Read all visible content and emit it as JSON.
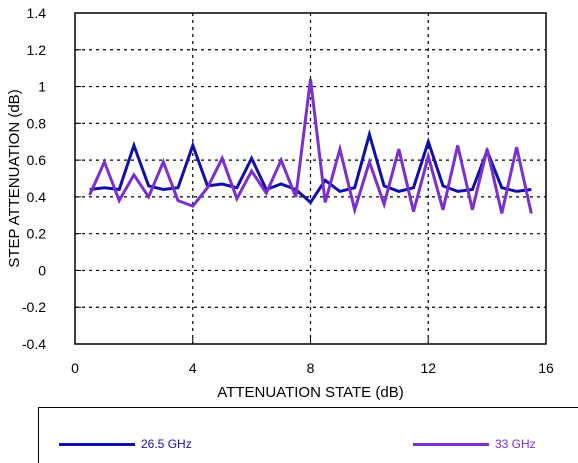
{
  "chart_data": {
    "type": "line",
    "title": "",
    "xlabel": "ATTENUATION STATE (dB)",
    "ylabel": "STEP ATTENUATION (dB)",
    "xlim": [
      0,
      16
    ],
    "ylim": [
      -0.4,
      1.4
    ],
    "xticks": [
      0,
      4,
      8,
      12,
      16
    ],
    "yticks": [
      -0.4,
      -0.2,
      0,
      0.2,
      0.4,
      0.6,
      0.8,
      1,
      1.2,
      1.4
    ],
    "grid": true,
    "legend_position": "bottom",
    "x": [
      0.5,
      1,
      1.5,
      2,
      2.5,
      3,
      3.5,
      4,
      4.5,
      5,
      5.5,
      6,
      6.5,
      7,
      7.5,
      8,
      8.5,
      9,
      9.5,
      10,
      10.5,
      11,
      11.5,
      12,
      12.5,
      13,
      13.5,
      14,
      14.5,
      15,
      15.5
    ],
    "series": [
      {
        "name": "26.5 GHz",
        "color": "#1010a8",
        "values": [
          0.44,
          0.45,
          0.44,
          0.68,
          0.46,
          0.44,
          0.45,
          0.68,
          0.46,
          0.47,
          0.45,
          0.61,
          0.44,
          0.47,
          0.44,
          0.37,
          0.49,
          0.43,
          0.45,
          0.74,
          0.46,
          0.43,
          0.45,
          0.7,
          0.46,
          0.43,
          0.44,
          0.65,
          0.45,
          0.43,
          0.44
        ]
      },
      {
        "name": "33 GHz",
        "color": "#7b2fd0",
        "values": [
          0.41,
          0.59,
          0.38,
          0.52,
          0.4,
          0.59,
          0.38,
          0.35,
          0.45,
          0.61,
          0.39,
          0.54,
          0.42,
          0.6,
          0.4,
          1.04,
          0.37,
          0.66,
          0.33,
          0.59,
          0.36,
          0.66,
          0.32,
          0.62,
          0.33,
          0.68,
          0.33,
          0.66,
          0.31,
          0.67,
          0.31
        ]
      }
    ]
  }
}
